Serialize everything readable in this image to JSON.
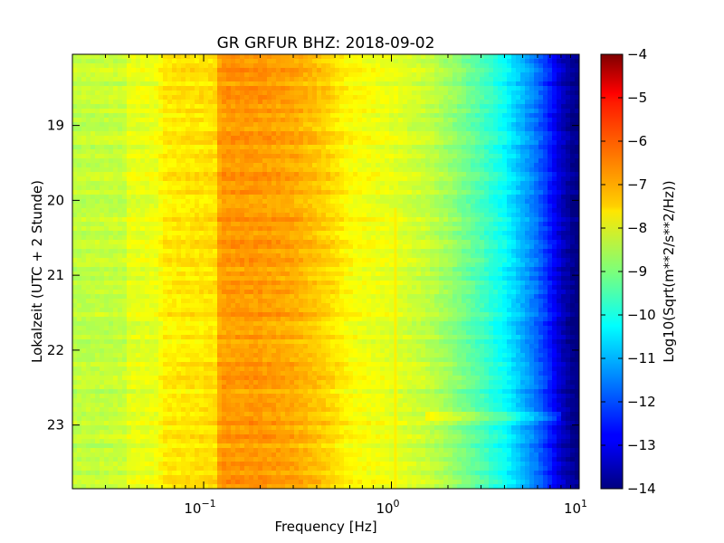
{
  "chart_data": {
    "type": "heatmap",
    "title": "GR GRFUR BHZ: 2018-09-02",
    "xlabel": "Frequency [Hz]",
    "ylabel": "Lokalzeit (UTC + 2 Stunde)",
    "x_scale": "log",
    "xlim": [
      0.02,
      10
    ],
    "ylim": [
      18.05,
      23.85
    ],
    "y_inverted": true,
    "x_ticks": [
      {
        "value": 0.1,
        "base": "10",
        "exp": "−1"
      },
      {
        "value": 1,
        "base": "10",
        "exp": "0"
      },
      {
        "value": 10,
        "base": "10",
        "exp": "1"
      }
    ],
    "y_ticks": [
      {
        "value": 19,
        "label": "19"
      },
      {
        "value": 20,
        "label": "20"
      },
      {
        "value": 21,
        "label": "21"
      },
      {
        "value": 22,
        "label": "22"
      },
      {
        "value": 23,
        "label": "23"
      }
    ],
    "colorbar": {
      "label": "Log10(Sqrt(m**2/s**2/Hz))",
      "range": [
        -14,
        -4
      ],
      "colormap": "jet",
      "ticks": [
        {
          "value": -4,
          "label": "−4"
        },
        {
          "value": -5,
          "label": "−5"
        },
        {
          "value": -6,
          "label": "−6"
        },
        {
          "value": -7,
          "label": "−7"
        },
        {
          "value": -8,
          "label": "−8"
        },
        {
          "value": -9,
          "label": "−9"
        },
        {
          "value": -10,
          "label": "−10"
        },
        {
          "value": -11,
          "label": "−11"
        },
        {
          "value": -12,
          "label": "−12"
        },
        {
          "value": -13,
          "label": "−13"
        },
        {
          "value": -14,
          "label": "−14"
        }
      ]
    },
    "frequency_profile": [
      {
        "freq": 0.02,
        "value": -8.4
      },
      {
        "freq": 0.038,
        "value": -8.3
      },
      {
        "freq": 0.04,
        "value": -8.0
      },
      {
        "freq": 0.058,
        "value": -7.95
      },
      {
        "freq": 0.06,
        "value": -7.6
      },
      {
        "freq": 0.118,
        "value": -7.45
      },
      {
        "freq": 0.122,
        "value": -6.75
      },
      {
        "freq": 0.2,
        "value": -6.75
      },
      {
        "freq": 0.3,
        "value": -6.9
      },
      {
        "freq": 0.45,
        "value": -7.3
      },
      {
        "freq": 0.6,
        "value": -7.75
      },
      {
        "freq": 1.0,
        "value": -8.0
      },
      {
        "freq": 1.5,
        "value": -8.3
      },
      {
        "freq": 2.0,
        "value": -8.7
      },
      {
        "freq": 3.0,
        "value": -9.5
      },
      {
        "freq": 4.0,
        "value": -10.2
      },
      {
        "freq": 5.0,
        "value": -11.0
      },
      {
        "freq": 6.0,
        "value": -11.7
      },
      {
        "freq": 7.0,
        "value": -12.5
      },
      {
        "freq": 8.0,
        "value": -13.3
      },
      {
        "freq": 9.0,
        "value": -13.8
      },
      {
        "freq": 10.0,
        "value": -14.0
      }
    ],
    "spectral_line": {
      "freq": 1.05,
      "value": -7.6,
      "start_time": 20.1
    },
    "time_band": {
      "time": 22.9,
      "freq_min": 1.5,
      "freq_max": 8.0,
      "value_offset": 0.7
    }
  }
}
